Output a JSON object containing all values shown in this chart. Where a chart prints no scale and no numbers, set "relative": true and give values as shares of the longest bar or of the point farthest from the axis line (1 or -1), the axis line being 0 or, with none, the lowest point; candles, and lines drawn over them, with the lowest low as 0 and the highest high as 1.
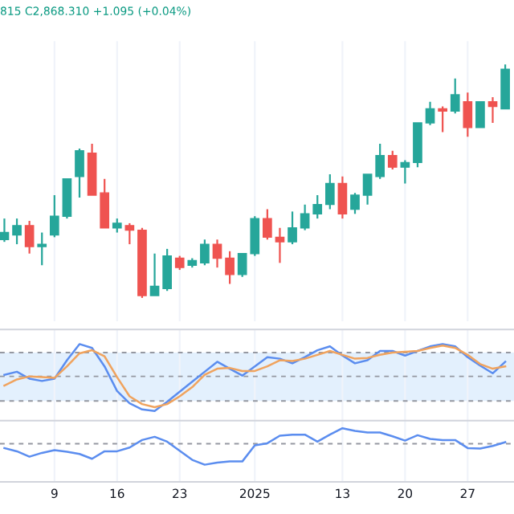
{
  "chart_data": [
    {
      "type": "candlestick",
      "relative": true,
      "grid": "x",
      "tick_labels": false,
      "annotations": [
        "815 C2,868.310 +1.095 (+0.04%)"
      ],
      "categories": [
        null,
        null,
        null,
        null,
        "9",
        null,
        null,
        null,
        null,
        "16",
        null,
        null,
        null,
        null,
        "23",
        null,
        null,
        null,
        null,
        null,
        "2025",
        null,
        null,
        null,
        null,
        null,
        null,
        "13",
        null,
        null,
        null,
        null,
        "20",
        null,
        null,
        null,
        null,
        "27",
        null,
        null,
        null
      ],
      "ohlc": [
        [
          0.25,
          0.34,
          0.24,
          0.28
        ],
        [
          0.27,
          0.34,
          0.23,
          0.31
        ],
        [
          0.31,
          0.33,
          0.19,
          0.22
        ],
        [
          0.22,
          0.28,
          0.14,
          0.23
        ],
        [
          0.27,
          0.44,
          0.26,
          0.35
        ],
        [
          0.35,
          0.51,
          0.34,
          0.51
        ],
        [
          0.52,
          0.64,
          0.43,
          0.63
        ],
        [
          0.62,
          0.66,
          0.44,
          0.44
        ],
        [
          0.45,
          0.51,
          0.3,
          0.3
        ],
        [
          0.3,
          0.34,
          0.28,
          0.32
        ],
        [
          0.31,
          0.32,
          0.23,
          0.29
        ],
        [
          0.29,
          0.3,
          0,
          0.01
        ],
        [
          0.01,
          0.19,
          0.01,
          0.05
        ],
        [
          0.04,
          0.21,
          0.03,
          0.18
        ],
        [
          0.17,
          0.18,
          0.12,
          0.13
        ],
        [
          0.14,
          0.17,
          0.13,
          0.16
        ],
        [
          0.15,
          0.25,
          0.14,
          0.23
        ],
        [
          0.23,
          0.25,
          0.13,
          0.17
        ],
        [
          0.17,
          0.2,
          0.06,
          0.1
        ],
        [
          0.1,
          0.19,
          0.09,
          0.19
        ],
        [
          0.19,
          0.35,
          0.18,
          0.34
        ],
        [
          0.34,
          0.38,
          0.25,
          0.26
        ],
        [
          0.26,
          0.3,
          0.15,
          0.24
        ],
        [
          0.24,
          0.37,
          0.23,
          0.3
        ],
        [
          0.3,
          0.4,
          0.29,
          0.36
        ],
        [
          0.36,
          0.44,
          0.34,
          0.4
        ],
        [
          0.4,
          0.53,
          0.38,
          0.49
        ],
        [
          0.49,
          0.52,
          0.34,
          0.36
        ],
        [
          0.38,
          0.45,
          0.36,
          0.44
        ],
        [
          0.44,
          0.53,
          0.4,
          0.53
        ],
        [
          0.52,
          0.66,
          0.51,
          0.61
        ],
        [
          0.61,
          0.63,
          0.55,
          0.56
        ],
        [
          0.56,
          0.59,
          0.49,
          0.58
        ],
        [
          0.58,
          0.75,
          0.56,
          0.75
        ],
        [
          0.75,
          0.84,
          0.74,
          0.81
        ],
        [
          0.81,
          0.82,
          0.71,
          0.8
        ],
        [
          0.8,
          0.94,
          0.79,
          0.87
        ],
        [
          0.84,
          0.88,
          0.69,
          0.73
        ],
        [
          0.73,
          0.84,
          0.73,
          0.84
        ],
        [
          0.84,
          0.86,
          0.75,
          0.82
        ],
        [
          0.81,
          1,
          0.81,
          0.98
        ]
      ],
      "colors": [
        "#26a69a",
        "#26a69a",
        "#ef5350",
        "#26a69a",
        "#26a69a",
        "#26a69a",
        "#26a69a",
        "#ef5350",
        "#ef5350",
        "#26a69a",
        "#ef5350",
        "#ef5350",
        "#26a69a",
        "#26a69a",
        "#ef5350",
        "#26a69a",
        "#26a69a",
        "#ef5350",
        "#ef5350",
        "#26a69a",
        "#26a69a",
        "#ef5350",
        "#ef5350",
        "#26a69a",
        "#26a69a",
        "#26a69a",
        "#26a69a",
        "#ef5350",
        "#26a69a",
        "#26a69a",
        "#26a69a",
        "#ef5350",
        "#26a69a",
        "#26a69a",
        "#26a69a",
        "#ef5350",
        "#26a69a",
        "#ef5350",
        "#26a69a",
        "#ef5350",
        "#26a69a"
      ]
    },
    {
      "type": "line",
      "relative": true,
      "grid": "x",
      "tick_labels": false,
      "line_style": "solid",
      "marker": "none",
      "categories": [
        null,
        null,
        null,
        null,
        "9",
        null,
        null,
        null,
        null,
        "16",
        null,
        null,
        null,
        null,
        "23",
        null,
        null,
        null,
        null,
        null,
        "2025",
        null,
        null,
        null,
        null,
        null,
        null,
        "13",
        null,
        null,
        null,
        null,
        "20",
        null,
        null,
        null,
        null,
        "27",
        null,
        null,
        null
      ],
      "series": [
        {
          "color": "#5b8def",
          "values": [
            0.6,
            0.64,
            0.55,
            0.52,
            0.55,
            0.79,
            1.0,
            0.95,
            0.71,
            0.39,
            0.23,
            0.15,
            0.13,
            0.25,
            0.38,
            0.51,
            0.64,
            0.77,
            0.68,
            0.59,
            0.71,
            0.83,
            0.81,
            0.75,
            0.83,
            0.92,
            0.97,
            0.85,
            0.75,
            0.79,
            0.91,
            0.91,
            0.85,
            0.91,
            0.97,
            1.0,
            0.97,
            0.83,
            0.72,
            0.62,
            0.77
          ]
        },
        {
          "color": "#f0a35e",
          "values": [
            0.46,
            0.54,
            0.58,
            0.57,
            0.56,
            0.71,
            0.88,
            0.92,
            0.84,
            0.57,
            0.32,
            0.22,
            0.18,
            0.22,
            0.32,
            0.44,
            0.6,
            0.68,
            0.69,
            0.65,
            0.65,
            0.71,
            0.79,
            0.78,
            0.81,
            0.86,
            0.91,
            0.86,
            0.81,
            0.82,
            0.86,
            0.89,
            0.9,
            0.91,
            0.95,
            0.98,
            0.95,
            0.86,
            0.74,
            0.68,
            0.71
          ]
        }
      ],
      "ref_lines": [
        {
          "axis": "y",
          "value": 0.89,
          "color": "#9598a1",
          "line_style": "dashed"
        },
        {
          "axis": "y",
          "value": 0.58,
          "color": "#9598a1",
          "line_style": "dashed"
        },
        {
          "axis": "y",
          "value": 0.26,
          "color": "#9598a1",
          "line_style": "dashed"
        }
      ],
      "bands": [
        {
          "axis": "y",
          "from": 0.26,
          "to": 0.89,
          "color": "#e3f0fd"
        }
      ]
    },
    {
      "type": "line",
      "relative": true,
      "grid": "x",
      "tick_labels": "x",
      "line_style": "solid",
      "marker": "none",
      "categories": [
        null,
        null,
        null,
        null,
        "9",
        null,
        null,
        null,
        null,
        "16",
        null,
        null,
        null,
        null,
        "23",
        null,
        null,
        null,
        null,
        null,
        "2025",
        null,
        null,
        null,
        null,
        null,
        null,
        "13",
        null,
        null,
        null,
        null,
        "20",
        null,
        null,
        null,
        null,
        "27",
        null,
        null,
        null
      ],
      "series": [
        {
          "color": "#5b8def",
          "values": [
            0.63,
            0.57,
            0.47,
            0.54,
            0.59,
            0.56,
            0.52,
            0.43,
            0.57,
            0.57,
            0.64,
            0.78,
            0.84,
            0.75,
            0.58,
            0.41,
            0.32,
            0.36,
            0.38,
            0.38,
            0.68,
            0.72,
            0.86,
            0.88,
            0.88,
            0.75,
            0.88,
            1.0,
            0.95,
            0.92,
            0.92,
            0.85,
            0.77,
            0.87,
            0.8,
            0.78,
            0.78,
            0.63,
            0.62,
            0.67,
            0.74
          ]
        }
      ],
      "ref_lines": [
        {
          "axis": "y",
          "value": 0.71,
          "color": "#9598a1",
          "line_style": "dashed"
        }
      ]
    }
  ]
}
